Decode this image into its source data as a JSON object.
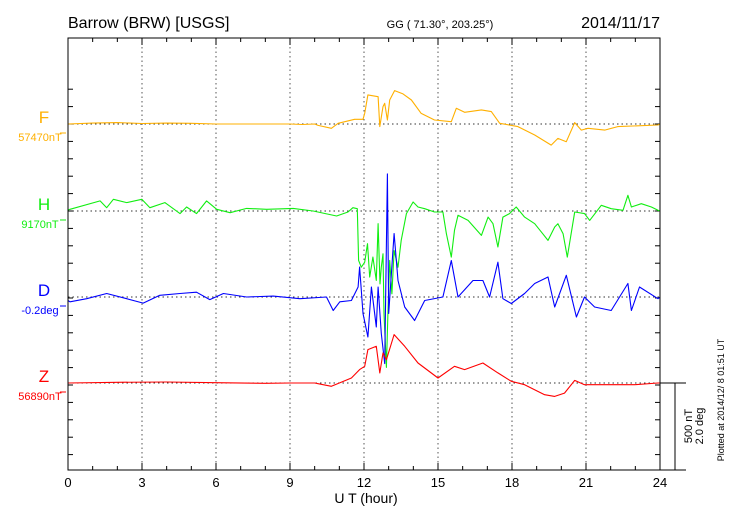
{
  "header": {
    "station": "Barrow (BRW)  [USGS]",
    "coords": "GG ( 71.30°, 203.25°)",
    "date": "2014/11/17"
  },
  "footer": {
    "plotted": "Plotted at 2014/12/ 8 01:51  UT",
    "scale_nt": "500 nT",
    "scale_deg": "2.0 deg"
  },
  "chart_data": {
    "type": "line",
    "title": "Barrow (BRW)  [USGS]",
    "xlabel": "U T (hour)",
    "xlim": [
      0,
      24
    ],
    "xticks": [
      "0",
      "3",
      "6",
      "9",
      "12",
      "15",
      "18",
      "21",
      "24"
    ],
    "grid": "dotted vertical every 3 h, dotted baseline per component",
    "colors": {
      "F": "#ffb000",
      "H": "#11ee11",
      "D": "#0000ff",
      "Z": "#ff0000"
    },
    "series": [
      {
        "name": "F",
        "baseline_label": "57470nT",
        "unit": "nT",
        "x": [
          0,
          1,
          2,
          3,
          4,
          5,
          6,
          7,
          8,
          9,
          9.5,
          10,
          10.14,
          10.68,
          10.95,
          11.62,
          11.96,
          12.03,
          12.16,
          12.57,
          12.64,
          12.77,
          12.84,
          12.95,
          13.04,
          13.24,
          13.58,
          13.92,
          14.32,
          14.86,
          15.54,
          15.74,
          16.08,
          16.76,
          17.16,
          17.5,
          18.24,
          18.92,
          19.59,
          19.86,
          20.2,
          20.54,
          20.81,
          21.08,
          21.76,
          22.29,
          23.92,
          24
        ],
        "y": [
          0,
          5,
          8,
          3,
          5,
          4,
          0,
          0,
          0,
          0,
          -3,
          0,
          -8,
          -25,
          4,
          27,
          27,
          61,
          167,
          157,
          -15,
          100,
          119,
          23,
          138,
          192,
          173,
          138,
          61,
          23,
          13,
          90,
          67,
          81,
          71,
          4,
          -15,
          -63,
          -121,
          -83,
          -102,
          8,
          -35,
          -25,
          -35,
          -15,
          -6,
          0
        ]
      },
      {
        "name": "H",
        "baseline_label": "9170nT",
        "unit": "nT",
        "x": [
          0,
          0.08,
          1.3,
          1.57,
          1.84,
          2.38,
          2.99,
          3.32,
          3.93,
          4.54,
          4.81,
          5.21,
          5.62,
          6.03,
          6.57,
          7.24,
          8.05,
          9.13,
          9.94,
          10.89,
          11.35,
          11.55,
          11.73,
          11.78,
          11.89,
          12.03,
          12.14,
          12.23,
          12.36,
          12.5,
          12.57,
          12.65,
          12.7,
          12.77,
          12.81,
          12.91,
          12.97,
          13.04,
          13.13,
          13.22,
          13.38,
          13.51,
          13.72,
          13.99,
          14.19,
          14.46,
          14.86,
          15.2,
          15.34,
          15.54,
          15.67,
          15.81,
          16.22,
          16.76,
          17.03,
          17.23,
          17.43,
          17.63,
          17.9,
          18.17,
          18.51,
          18.92,
          19.25,
          19.46,
          19.73,
          19.86,
          20.07,
          20.24,
          20.54,
          20.94,
          21.15,
          21.62,
          22.02,
          22.5,
          22.7,
          22.84,
          23.24,
          23.65,
          23.92,
          24
        ],
        "y": [
          5,
          10,
          58,
          19,
          67,
          48,
          67,
          19,
          48,
          -15,
          23,
          -15,
          58,
          10,
          -10,
          15,
          10,
          15,
          0,
          -29,
          -6,
          19,
          13,
          -284,
          -323,
          -294,
          -188,
          -380,
          -265,
          -399,
          -73,
          -419,
          -323,
          -246,
          -591,
          -899,
          -591,
          -284,
          -476,
          -227,
          -323,
          -169,
          -15,
          52,
          23,
          13,
          -6,
          -6,
          -131,
          -265,
          -111,
          -25,
          -54,
          -140,
          -35,
          -73,
          -207,
          -35,
          -15,
          23,
          -35,
          -73,
          -131,
          -169,
          -92,
          -73,
          -131,
          -265,
          -6,
          -15,
          -54,
          33,
          13,
          4,
          90,
          23,
          42,
          23,
          4,
          0
        ]
      },
      {
        "name": "D",
        "baseline_label": "-0.2deg",
        "unit": "deg",
        "x": [
          0,
          0.08,
          0.76,
          1.57,
          2.38,
          3.05,
          3.72,
          4.54,
          5.21,
          5.75,
          6.3,
          7.24,
          8.32,
          9.4,
          10.48,
          10.75,
          11.02,
          11.49,
          11.76,
          11.82,
          11.96,
          12.16,
          12.3,
          12.5,
          12.57,
          12.7,
          12.84,
          12.95,
          13.0,
          13.22,
          13.38,
          13.65,
          14.05,
          14.46,
          15.2,
          15.54,
          15.81,
          16.42,
          16.82,
          17.09,
          17.43,
          17.63,
          17.97,
          18.51,
          18.92,
          19.46,
          19.73,
          20.2,
          20.61,
          20.94,
          21.35,
          22.02,
          22.7,
          22.84,
          23.17,
          23.92,
          24
        ],
        "y": [
          -0.08,
          -0.11,
          -0.04,
          0.08,
          -0.04,
          -0.14,
          0.04,
          0.08,
          0.11,
          -0.06,
          0.08,
          0,
          0.02,
          -0.04,
          0,
          -0.31,
          -0.11,
          -0.08,
          0.23,
          0.69,
          -0.38,
          -0.92,
          0.23,
          -0.69,
          0.23,
          -0.84,
          -1.53,
          2.83,
          -0.38,
          1.46,
          0.38,
          -0.23,
          -0.54,
          -0.08,
          0,
          0.84,
          0,
          0.38,
          0.38,
          0,
          0.8,
          -0.04,
          -0.15,
          0.08,
          0.31,
          0.46,
          -0.23,
          0.5,
          -0.46,
          0,
          -0.23,
          -0.31,
          0.31,
          -0.31,
          0.23,
          -0.04,
          0
        ]
      },
      {
        "name": "Z",
        "baseline_label": "56890nT",
        "unit": "nT",
        "x": [
          0,
          2,
          4,
          6,
          8,
          9,
          10,
          10.14,
          10.68,
          11.49,
          11.82,
          12.03,
          12.16,
          12.5,
          12.64,
          12.77,
          12.91,
          13.22,
          13.65,
          14.19,
          15.0,
          15.67,
          16.08,
          16.82,
          17.43,
          17.97,
          18.51,
          19.32,
          19.73,
          20.13,
          20.54,
          20.94,
          21.76,
          22.97,
          23.92,
          24
        ],
        "y": [
          0,
          4,
          6,
          2,
          -2,
          0,
          0,
          -4,
          -19,
          29,
          77,
          96,
          192,
          211,
          58,
          173,
          134,
          278,
          211,
          115,
          29,
          96,
          77,
          115,
          58,
          10,
          -10,
          -67,
          -77,
          -58,
          15,
          -10,
          -10,
          -10,
          0,
          0
        ]
      }
    ],
    "scale_bar": {
      "nT": 500,
      "deg": 2.0
    }
  }
}
